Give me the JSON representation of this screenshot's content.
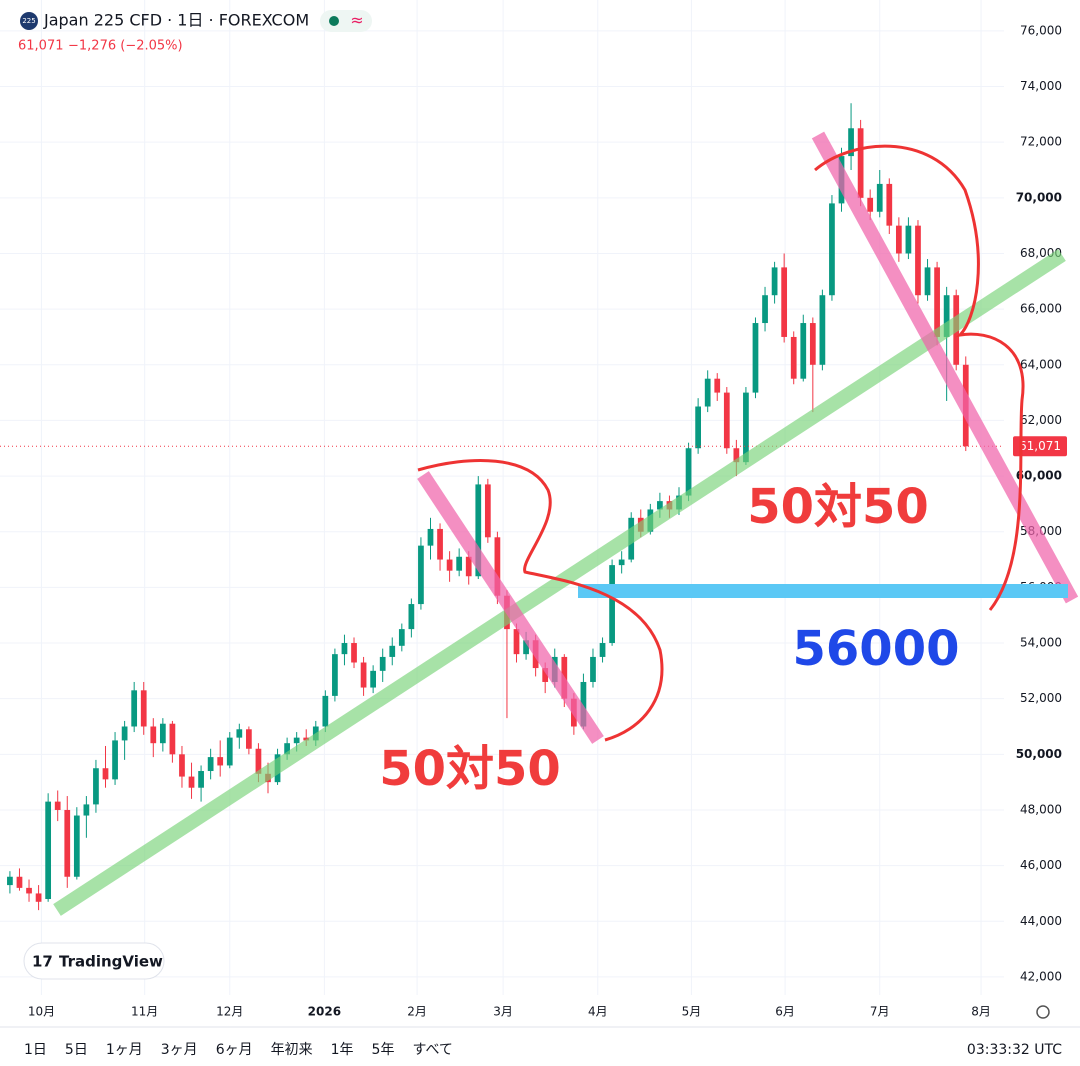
{
  "header": {
    "icon": "225",
    "title": "Japan 225 CFD · 1日 · FOREXCOM",
    "quote": "61,071",
    "change": "−1,276 (−2.05%)"
  },
  "branding": "TradingView",
  "toolbar": {
    "ranges": [
      "1日",
      "5日",
      "1ヶ月",
      "3ヶ月",
      "6ヶ月",
      "年初来",
      "1年",
      "5年",
      "すべて"
    ],
    "clock": "03:33:32 UTC"
  },
  "annotations": [
    "50対50",
    "50対50",
    "56000"
  ],
  "chart_data": {
    "type": "candlestick",
    "up_color": "#089981",
    "down_color": "#f23645",
    "xlim": [
      -0.2,
      104
    ],
    "xticks": [
      {
        "value": 3.3,
        "label": "10月"
      },
      {
        "value": 14.1,
        "label": "11月"
      },
      {
        "value": 23,
        "label": "12月"
      },
      {
        "value": 32.9,
        "label": "2026"
      },
      {
        "value": 42.6,
        "label": "2月"
      },
      {
        "value": 51.6,
        "label": "3月"
      },
      {
        "value": 61.5,
        "label": "4月"
      },
      {
        "value": 71.3,
        "label": "5月"
      },
      {
        "value": 81.1,
        "label": "6月"
      },
      {
        "value": 91,
        "label": "7月"
      },
      {
        "value": 101.6,
        "label": "8月"
      }
    ],
    "ylim": [
      41350,
      77110
    ],
    "yticks": [
      {
        "value": 42000,
        "label": "42,000"
      },
      {
        "value": 44000,
        "label": "44,000"
      },
      {
        "value": 46000,
        "label": "46,000"
      },
      {
        "value": 48000,
        "label": "48,000"
      },
      {
        "value": 50000,
        "label": "50,000"
      },
      {
        "value": 52000,
        "label": "52,000"
      },
      {
        "value": 54000,
        "label": "54,000"
      },
      {
        "value": 56000,
        "label": "56,000"
      },
      {
        "value": 58000,
        "label": "58,000"
      },
      {
        "value": 60000,
        "label": "60,000"
      },
      {
        "value": 62000,
        "label": "62,000"
      },
      {
        "value": 64000,
        "label": "64,000"
      },
      {
        "value": 66000,
        "label": "66,000"
      },
      {
        "value": 68000,
        "label": "68,000"
      },
      {
        "value": 70000,
        "label": "70,000"
      },
      {
        "value": 72000,
        "label": "72,000"
      },
      {
        "value": 74000,
        "label": "74,000"
      },
      {
        "value": 76000,
        "label": "76,000"
      }
    ],
    "grid": true,
    "last_price": {
      "value": 61071,
      "label": "61,071"
    },
    "ohlc": [
      [
        45300,
        45800,
        45000,
        45600
      ],
      [
        45600,
        45900,
        45100,
        45200
      ],
      [
        45200,
        45500,
        44700,
        45000
      ],
      [
        45000,
        45300,
        44400,
        44700
      ],
      [
        44800,
        48600,
        44700,
        48300
      ],
      [
        48300,
        48700,
        47600,
        48000
      ],
      [
        48000,
        48500,
        45200,
        45600
      ],
      [
        45600,
        48100,
        45500,
        47800
      ],
      [
        47800,
        48500,
        47000,
        48200
      ],
      [
        48200,
        49800,
        47900,
        49500
      ],
      [
        49500,
        50300,
        48800,
        49100
      ],
      [
        49100,
        50800,
        48900,
        50500
      ],
      [
        50500,
        51200,
        49800,
        51000
      ],
      [
        51000,
        52600,
        50800,
        52300
      ],
      [
        52300,
        52600,
        50700,
        51000
      ],
      [
        51000,
        51300,
        49900,
        50400
      ],
      [
        50400,
        51300,
        50100,
        51100
      ],
      [
        51100,
        51200,
        49700,
        50000
      ],
      [
        50000,
        50300,
        48800,
        49200
      ],
      [
        49200,
        49700,
        48400,
        48800
      ],
      [
        48800,
        49600,
        48300,
        49400
      ],
      [
        49400,
        50200,
        49100,
        49900
      ],
      [
        49900,
        50500,
        49200,
        49600
      ],
      [
        49600,
        50800,
        49500,
        50600
      ],
      [
        50600,
        51100,
        50200,
        50900
      ],
      [
        50900,
        51000,
        50000,
        50200
      ],
      [
        50200,
        50400,
        49000,
        49300
      ],
      [
        49300,
        49700,
        48600,
        49000
      ],
      [
        49000,
        50200,
        48900,
        50000
      ],
      [
        50000,
        50600,
        49800,
        50400
      ],
      [
        50400,
        50800,
        50100,
        50600
      ],
      [
        50600,
        50900,
        50300,
        50500
      ],
      [
        50500,
        51200,
        50300,
        51000
      ],
      [
        51000,
        52300,
        50800,
        52100
      ],
      [
        52100,
        53800,
        51900,
        53600
      ],
      [
        53600,
        54300,
        53200,
        54000
      ],
      [
        54000,
        54200,
        53100,
        53300
      ],
      [
        53300,
        53500,
        52100,
        52400
      ],
      [
        52400,
        53200,
        52200,
        53000
      ],
      [
        53000,
        53800,
        52600,
        53500
      ],
      [
        53500,
        54200,
        53200,
        53900
      ],
      [
        53900,
        54700,
        53700,
        54500
      ],
      [
        54500,
        55600,
        54200,
        55400
      ],
      [
        55400,
        57800,
        55200,
        57500
      ],
      [
        57500,
        58500,
        57000,
        58100
      ],
      [
        58100,
        58300,
        56600,
        57000
      ],
      [
        57000,
        57300,
        56200,
        56600
      ],
      [
        56600,
        57400,
        56400,
        57100
      ],
      [
        57100,
        57300,
        56100,
        56400
      ],
      [
        56400,
        60000,
        56300,
        59700
      ],
      [
        59700,
        59900,
        57600,
        57800
      ],
      [
        57800,
        58000,
        55400,
        55700
      ],
      [
        55700,
        55900,
        51300,
        54500
      ],
      [
        54500,
        54700,
        53300,
        53600
      ],
      [
        53600,
        54400,
        53400,
        54100
      ],
      [
        54100,
        54300,
        52800,
        53100
      ],
      [
        53100,
        53300,
        52200,
        52600
      ],
      [
        52600,
        53800,
        52400,
        53500
      ],
      [
        53500,
        53600,
        51700,
        52000
      ],
      [
        52000,
        52200,
        50700,
        51000
      ],
      [
        51000,
        52900,
        50900,
        52600
      ],
      [
        52600,
        53800,
        52400,
        53500
      ],
      [
        53500,
        54200,
        53300,
        54000
      ],
      [
        54000,
        57000,
        53900,
        56800
      ],
      [
        56800,
        57300,
        56500,
        57000
      ],
      [
        57000,
        58700,
        56900,
        58500
      ],
      [
        58500,
        58800,
        57800,
        58000
      ],
      [
        58000,
        59000,
        57900,
        58800
      ],
      [
        58800,
        59400,
        58500,
        59100
      ],
      [
        59100,
        59300,
        58500,
        58800
      ],
      [
        58800,
        59600,
        58600,
        59300
      ],
      [
        59300,
        61200,
        59100,
        61000
      ],
      [
        61000,
        62800,
        60800,
        62500
      ],
      [
        62500,
        63800,
        62300,
        63500
      ],
      [
        63500,
        63700,
        62700,
        63000
      ],
      [
        63000,
        63200,
        60800,
        61000
      ],
      [
        61000,
        61300,
        60000,
        60500
      ],
      [
        60500,
        63200,
        60400,
        63000
      ],
      [
        63000,
        65700,
        62800,
        65500
      ],
      [
        65500,
        66800,
        65200,
        66500
      ],
      [
        66500,
        67700,
        66200,
        67500
      ],
      [
        67500,
        68000,
        64800,
        65000
      ],
      [
        65000,
        65200,
        63300,
        63500
      ],
      [
        63500,
        65800,
        63400,
        65500
      ],
      [
        65500,
        65700,
        62300,
        64000
      ],
      [
        64000,
        66700,
        63800,
        66500
      ],
      [
        66500,
        70100,
        66300,
        69800
      ],
      [
        69800,
        71800,
        69500,
        71500
      ],
      [
        71500,
        73400,
        71000,
        72500
      ],
      [
        72500,
        72800,
        69700,
        70000
      ],
      [
        70000,
        70300,
        69200,
        69500
      ],
      [
        69500,
        71000,
        69300,
        70500
      ],
      [
        70500,
        70700,
        68700,
        69000
      ],
      [
        69000,
        69300,
        67700,
        68000
      ],
      [
        68000,
        69300,
        67800,
        69000
      ],
      [
        69000,
        69200,
        66200,
        66500
      ],
      [
        66500,
        67800,
        66300,
        67500
      ],
      [
        67500,
        67700,
        64700,
        65000
      ],
      [
        65000,
        66800,
        62700,
        66500
      ],
      [
        66500,
        66700,
        63800,
        64000
      ],
      [
        64000,
        64300,
        60900,
        61071
      ]
    ]
  }
}
